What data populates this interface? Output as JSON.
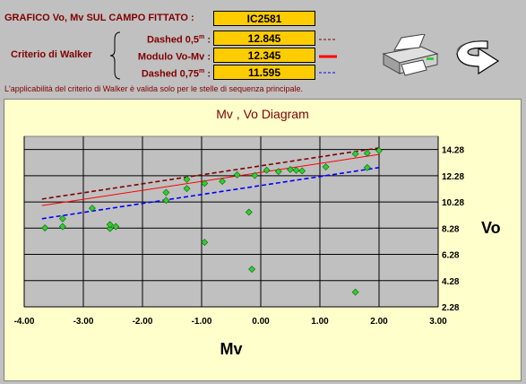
{
  "header": {
    "title": "GRAFICO Vo, Mv SUL CAMPO FITTATO :",
    "title_value": "IC2581",
    "criterion_label": "Criterio di Walker",
    "rows": [
      {
        "label": "Dashed 0,5",
        "sup": "m",
        "suffix": " :",
        "value": "12.845",
        "line_color": "#800000",
        "line_style": "dashed"
      },
      {
        "label": "Modulo Vo-Mv",
        "sup": "",
        "suffix": " :",
        "value": "12.345",
        "line_color": "#ff0000",
        "line_style": "solid"
      },
      {
        "label": "Dashed 0,75",
        "sup": "m",
        "suffix": " :",
        "value": "11.595",
        "line_color": "#0000ff",
        "line_style": "dashed"
      }
    ],
    "note": "L'applicabilità del criterio di Walker è valida solo per le stelle di sequenza principale."
  },
  "buttons": {
    "print": {
      "icon": "printer-icon"
    },
    "back": {
      "icon": "curved-arrow-back-icon"
    }
  },
  "chart_data": {
    "type": "scatter",
    "title": "Mv , Vo Diagram",
    "xlabel": "Mv",
    "ylabel": "Vo",
    "xlim": [
      -4.0,
      3.0
    ],
    "ylim": [
      2.28,
      15.28
    ],
    "x_ticks": [
      "-4.00",
      "-3.00",
      "-2.00",
      "-1.00",
      "0.00",
      "1.00",
      "2.00",
      "3.00"
    ],
    "x_tick_values": [
      -4,
      -3,
      -2,
      -1,
      0,
      1,
      2,
      3
    ],
    "y_ticks": [
      "14.28",
      "12.28",
      "10.28",
      "8.28",
      "6.28",
      "4.28",
      "2.28"
    ],
    "y_tick_values": [
      14.28,
      12.28,
      10.28,
      8.28,
      6.28,
      4.28,
      2.28
    ],
    "grid": true,
    "marker_color": "#33cc33",
    "points": [
      {
        "x": -3.65,
        "y": 8.3
      },
      {
        "x": -3.35,
        "y": 8.4
      },
      {
        "x": -3.35,
        "y": 9.0
      },
      {
        "x": -2.85,
        "y": 9.8
      },
      {
        "x": -2.55,
        "y": 8.25
      },
      {
        "x": -2.55,
        "y": 8.55
      },
      {
        "x": -2.45,
        "y": 8.4
      },
      {
        "x": -1.6,
        "y": 10.4
      },
      {
        "x": -1.6,
        "y": 11.0
      },
      {
        "x": -1.25,
        "y": 11.3
      },
      {
        "x": -1.25,
        "y": 12.0
      },
      {
        "x": -0.95,
        "y": 7.2
      },
      {
        "x": -0.95,
        "y": 11.7
      },
      {
        "x": -0.65,
        "y": 11.85
      },
      {
        "x": -0.4,
        "y": 12.35
      },
      {
        "x": -0.2,
        "y": 9.5
      },
      {
        "x": -0.15,
        "y": 5.15
      },
      {
        "x": -0.1,
        "y": 12.3
      },
      {
        "x": 0.1,
        "y": 12.7
      },
      {
        "x": 0.3,
        "y": 12.6
      },
      {
        "x": 0.5,
        "y": 12.75
      },
      {
        "x": 0.6,
        "y": 12.7
      },
      {
        "x": 0.7,
        "y": 12.65
      },
      {
        "x": 1.1,
        "y": 12.95
      },
      {
        "x": 1.6,
        "y": 13.95
      },
      {
        "x": 1.6,
        "y": 3.4
      },
      {
        "x": 1.8,
        "y": 12.9
      },
      {
        "x": 1.8,
        "y": 14.0
      },
      {
        "x": 2.0,
        "y": 14.2
      }
    ],
    "lines": [
      {
        "color": "#800000",
        "style": "dashed",
        "x": [
          -3.7,
          2.0
        ],
        "y": [
          10.5,
          14.4
        ]
      },
      {
        "color": "#ff0000",
        "style": "solid",
        "x": [
          -3.7,
          2.0
        ],
        "y": [
          10.0,
          13.9
        ]
      },
      {
        "color": "#0000ff",
        "style": "dashed",
        "x": [
          -3.7,
          2.0
        ],
        "y": [
          9.0,
          12.9
        ]
      }
    ]
  }
}
